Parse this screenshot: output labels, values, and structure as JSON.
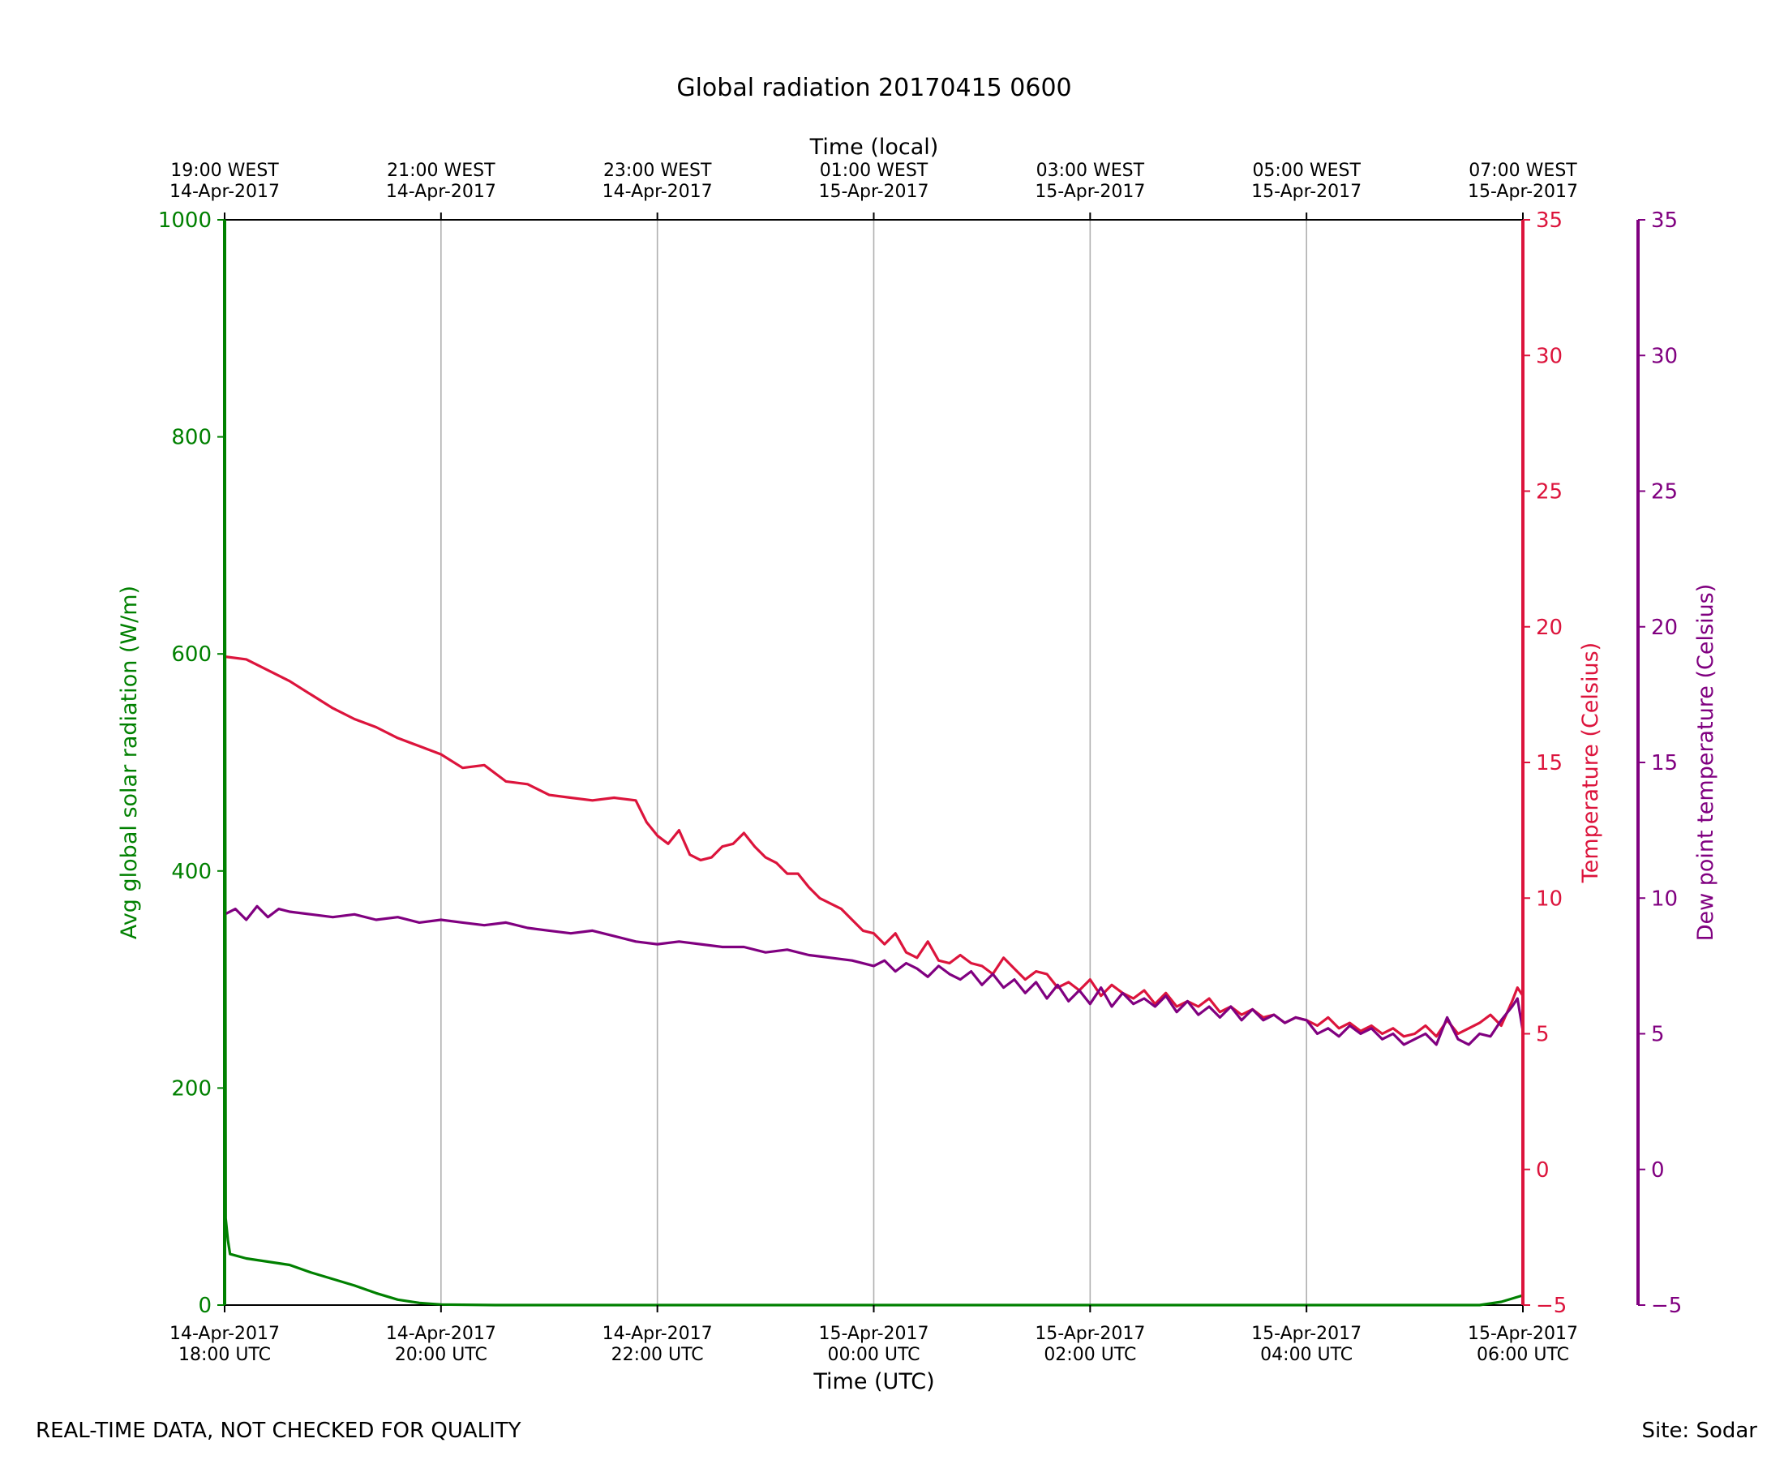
{
  "chart_data": {
    "type": "line",
    "title": "Global radiation 20170415 0600",
    "xlabel": "Time (UTC)",
    "xlabel_top": "Time (local)",
    "x_ticks_bottom": [
      {
        "h": 0,
        "line1": "14-Apr-2017",
        "line2": "18:00 UTC"
      },
      {
        "h": 2,
        "line1": "14-Apr-2017",
        "line2": "20:00 UTC"
      },
      {
        "h": 4,
        "line1": "14-Apr-2017",
        "line2": "22:00 UTC"
      },
      {
        "h": 6,
        "line1": "15-Apr-2017",
        "line2": "00:00 UTC"
      },
      {
        "h": 8,
        "line1": "15-Apr-2017",
        "line2": "02:00 UTC"
      },
      {
        "h": 10,
        "line1": "15-Apr-2017",
        "line2": "04:00 UTC"
      },
      {
        "h": 12,
        "line1": "15-Apr-2017",
        "line2": "06:00 UTC"
      }
    ],
    "x_ticks_top": [
      {
        "h": 0,
        "line1": "19:00 WEST",
        "line2": "14-Apr-2017"
      },
      {
        "h": 2,
        "line1": "21:00 WEST",
        "line2": "14-Apr-2017"
      },
      {
        "h": 4,
        "line1": "23:00 WEST",
        "line2": "14-Apr-2017"
      },
      {
        "h": 6,
        "line1": "01:00 WEST",
        "line2": "15-Apr-2017"
      },
      {
        "h": 8,
        "line1": "03:00 WEST",
        "line2": "15-Apr-2017"
      },
      {
        "h": 10,
        "line1": "05:00 WEST",
        "line2": "15-Apr-2017"
      },
      {
        "h": 12,
        "line1": "07:00 WEST",
        "line2": "15-Apr-2017"
      }
    ],
    "xlim_hours": [
      0,
      12
    ],
    "grid": "vertical",
    "axes": {
      "radiation": {
        "label": "Avg global solar radiation (W/m)",
        "ylim": [
          0,
          1000
        ],
        "ticks": [
          0,
          200,
          400,
          600,
          800,
          1000
        ],
        "color": "#008000"
      },
      "temperature": {
        "label": "Temperature (Celsius)",
        "ylim": [
          -5,
          35
        ],
        "ticks": [
          -5,
          0,
          5,
          10,
          15,
          20,
          25,
          30,
          35
        ],
        "color": "#dc143c"
      },
      "dewpoint": {
        "label": "Dew point temperature (Celsius)",
        "ylim": [
          -5,
          35
        ],
        "ticks": [
          -5,
          0,
          5,
          10,
          15,
          20,
          25,
          30,
          35
        ],
        "color": "#800080"
      }
    },
    "series": [
      {
        "key": "radiation",
        "axis": "radiation",
        "color": "#008000",
        "points": [
          [
            0,
            1000
          ],
          [
            0.01,
            80
          ],
          [
            0.03,
            60
          ],
          [
            0.05,
            47
          ],
          [
            0.2,
            43
          ],
          [
            0.4,
            40
          ],
          [
            0.6,
            37
          ],
          [
            0.8,
            30
          ],
          [
            1.0,
            24
          ],
          [
            1.2,
            18
          ],
          [
            1.4,
            11
          ],
          [
            1.6,
            5
          ],
          [
            1.8,
            2
          ],
          [
            2.0,
            0.5
          ],
          [
            2.5,
            0
          ],
          [
            11.2,
            0
          ],
          [
            11.6,
            0
          ],
          [
            11.8,
            3
          ],
          [
            12.0,
            9
          ]
        ]
      },
      {
        "key": "temperature",
        "axis": "temperature",
        "color": "#dc143c",
        "points": [
          [
            0,
            18.9
          ],
          [
            0.2,
            18.8
          ],
          [
            0.4,
            18.4
          ],
          [
            0.6,
            18.0
          ],
          [
            0.8,
            17.5
          ],
          [
            1.0,
            17.0
          ],
          [
            1.2,
            16.6
          ],
          [
            1.4,
            16.3
          ],
          [
            1.6,
            15.9
          ],
          [
            1.8,
            15.6
          ],
          [
            2.0,
            15.3
          ],
          [
            2.2,
            14.8
          ],
          [
            2.4,
            14.9
          ],
          [
            2.6,
            14.3
          ],
          [
            2.8,
            14.2
          ],
          [
            3.0,
            13.8
          ],
          [
            3.2,
            13.7
          ],
          [
            3.4,
            13.6
          ],
          [
            3.6,
            13.7
          ],
          [
            3.8,
            13.6
          ],
          [
            3.9,
            12.8
          ],
          [
            4.0,
            12.3
          ],
          [
            4.1,
            12.0
          ],
          [
            4.2,
            12.5
          ],
          [
            4.3,
            11.6
          ],
          [
            4.4,
            11.4
          ],
          [
            4.5,
            11.5
          ],
          [
            4.6,
            11.9
          ],
          [
            4.7,
            12.0
          ],
          [
            4.8,
            12.4
          ],
          [
            4.9,
            11.9
          ],
          [
            5.0,
            11.5
          ],
          [
            5.1,
            11.3
          ],
          [
            5.2,
            10.9
          ],
          [
            5.3,
            10.9
          ],
          [
            5.4,
            10.4
          ],
          [
            5.5,
            10.0
          ],
          [
            5.6,
            9.8
          ],
          [
            5.7,
            9.6
          ],
          [
            5.8,
            9.2
          ],
          [
            5.9,
            8.8
          ],
          [
            6.0,
            8.7
          ],
          [
            6.1,
            8.3
          ],
          [
            6.2,
            8.7
          ],
          [
            6.3,
            8.0
          ],
          [
            6.4,
            7.8
          ],
          [
            6.5,
            8.4
          ],
          [
            6.6,
            7.7
          ],
          [
            6.7,
            7.6
          ],
          [
            6.8,
            7.9
          ],
          [
            6.9,
            7.6
          ],
          [
            7.0,
            7.5
          ],
          [
            7.1,
            7.2
          ],
          [
            7.2,
            7.8
          ],
          [
            7.3,
            7.4
          ],
          [
            7.4,
            7.0
          ],
          [
            7.5,
            7.3
          ],
          [
            7.6,
            7.2
          ],
          [
            7.7,
            6.7
          ],
          [
            7.8,
            6.9
          ],
          [
            7.9,
            6.6
          ],
          [
            8.0,
            7.0
          ],
          [
            8.1,
            6.4
          ],
          [
            8.2,
            6.8
          ],
          [
            8.3,
            6.5
          ],
          [
            8.4,
            6.3
          ],
          [
            8.5,
            6.6
          ],
          [
            8.6,
            6.1
          ],
          [
            8.7,
            6.5
          ],
          [
            8.8,
            6.0
          ],
          [
            8.9,
            6.2
          ],
          [
            9.0,
            6.0
          ],
          [
            9.1,
            6.3
          ],
          [
            9.2,
            5.8
          ],
          [
            9.3,
            6.0
          ],
          [
            9.4,
            5.7
          ],
          [
            9.5,
            5.9
          ],
          [
            9.6,
            5.6
          ],
          [
            9.7,
            5.7
          ],
          [
            9.8,
            5.4
          ],
          [
            9.9,
            5.6
          ],
          [
            10.0,
            5.5
          ],
          [
            10.1,
            5.3
          ],
          [
            10.2,
            5.6
          ],
          [
            10.3,
            5.2
          ],
          [
            10.4,
            5.4
          ],
          [
            10.5,
            5.1
          ],
          [
            10.6,
            5.3
          ],
          [
            10.7,
            5.0
          ],
          [
            10.8,
            5.2
          ],
          [
            10.9,
            4.9
          ],
          [
            11.0,
            5.0
          ],
          [
            11.1,
            5.3
          ],
          [
            11.2,
            4.9
          ],
          [
            11.3,
            5.5
          ],
          [
            11.4,
            5.0
          ],
          [
            11.5,
            5.2
          ],
          [
            11.6,
            5.4
          ],
          [
            11.7,
            5.7
          ],
          [
            11.8,
            5.3
          ],
          [
            11.9,
            6.2
          ],
          [
            11.95,
            6.7
          ],
          [
            12.0,
            6.4
          ]
        ]
      },
      {
        "key": "dewpoint",
        "axis": "dewpoint",
        "color": "#800080",
        "points": [
          [
            0,
            9.4
          ],
          [
            0.1,
            9.6
          ],
          [
            0.2,
            9.2
          ],
          [
            0.3,
            9.7
          ],
          [
            0.4,
            9.3
          ],
          [
            0.5,
            9.6
          ],
          [
            0.6,
            9.5
          ],
          [
            0.8,
            9.4
          ],
          [
            1.0,
            9.3
          ],
          [
            1.2,
            9.4
          ],
          [
            1.4,
            9.2
          ],
          [
            1.6,
            9.3
          ],
          [
            1.8,
            9.1
          ],
          [
            2.0,
            9.2
          ],
          [
            2.2,
            9.1
          ],
          [
            2.4,
            9.0
          ],
          [
            2.6,
            9.1
          ],
          [
            2.8,
            8.9
          ],
          [
            3.0,
            8.8
          ],
          [
            3.2,
            8.7
          ],
          [
            3.4,
            8.8
          ],
          [
            3.6,
            8.6
          ],
          [
            3.8,
            8.4
          ],
          [
            4.0,
            8.3
          ],
          [
            4.2,
            8.4
          ],
          [
            4.4,
            8.3
          ],
          [
            4.6,
            8.2
          ],
          [
            4.8,
            8.2
          ],
          [
            5.0,
            8.0
          ],
          [
            5.2,
            8.1
          ],
          [
            5.4,
            7.9
          ],
          [
            5.6,
            7.8
          ],
          [
            5.8,
            7.7
          ],
          [
            6.0,
            7.5
          ],
          [
            6.1,
            7.7
          ],
          [
            6.2,
            7.3
          ],
          [
            6.3,
            7.6
          ],
          [
            6.4,
            7.4
          ],
          [
            6.5,
            7.1
          ],
          [
            6.6,
            7.5
          ],
          [
            6.7,
            7.2
          ],
          [
            6.8,
            7.0
          ],
          [
            6.9,
            7.3
          ],
          [
            7.0,
            6.8
          ],
          [
            7.1,
            7.2
          ],
          [
            7.2,
            6.7
          ],
          [
            7.3,
            7.0
          ],
          [
            7.4,
            6.5
          ],
          [
            7.5,
            6.9
          ],
          [
            7.6,
            6.3
          ],
          [
            7.7,
            6.8
          ],
          [
            7.8,
            6.2
          ],
          [
            7.9,
            6.6
          ],
          [
            8.0,
            6.1
          ],
          [
            8.1,
            6.7
          ],
          [
            8.2,
            6.0
          ],
          [
            8.3,
            6.5
          ],
          [
            8.4,
            6.1
          ],
          [
            8.5,
            6.3
          ],
          [
            8.6,
            6.0
          ],
          [
            8.7,
            6.4
          ],
          [
            8.8,
            5.8
          ],
          [
            8.9,
            6.2
          ],
          [
            9.0,
            5.7
          ],
          [
            9.1,
            6.0
          ],
          [
            9.2,
            5.6
          ],
          [
            9.3,
            6.0
          ],
          [
            9.4,
            5.5
          ],
          [
            9.5,
            5.9
          ],
          [
            9.6,
            5.5
          ],
          [
            9.7,
            5.7
          ],
          [
            9.8,
            5.4
          ],
          [
            9.9,
            5.6
          ],
          [
            10.0,
            5.5
          ],
          [
            10.1,
            5.0
          ],
          [
            10.2,
            5.2
          ],
          [
            10.3,
            4.9
          ],
          [
            10.4,
            5.3
          ],
          [
            10.5,
            5.0
          ],
          [
            10.6,
            5.2
          ],
          [
            10.7,
            4.8
          ],
          [
            10.8,
            5.0
          ],
          [
            10.9,
            4.6
          ],
          [
            11.0,
            4.8
          ],
          [
            11.1,
            5.0
          ],
          [
            11.2,
            4.6
          ],
          [
            11.3,
            5.6
          ],
          [
            11.4,
            4.8
          ],
          [
            11.5,
            4.6
          ],
          [
            11.6,
            5.0
          ],
          [
            11.7,
            4.9
          ],
          [
            11.8,
            5.5
          ],
          [
            11.9,
            6.0
          ],
          [
            11.95,
            6.3
          ],
          [
            12.0,
            5.1
          ]
        ]
      }
    ],
    "footer_left": "REAL-TIME DATA, NOT CHECKED FOR QUALITY",
    "footer_right": "Site: Sodar"
  }
}
